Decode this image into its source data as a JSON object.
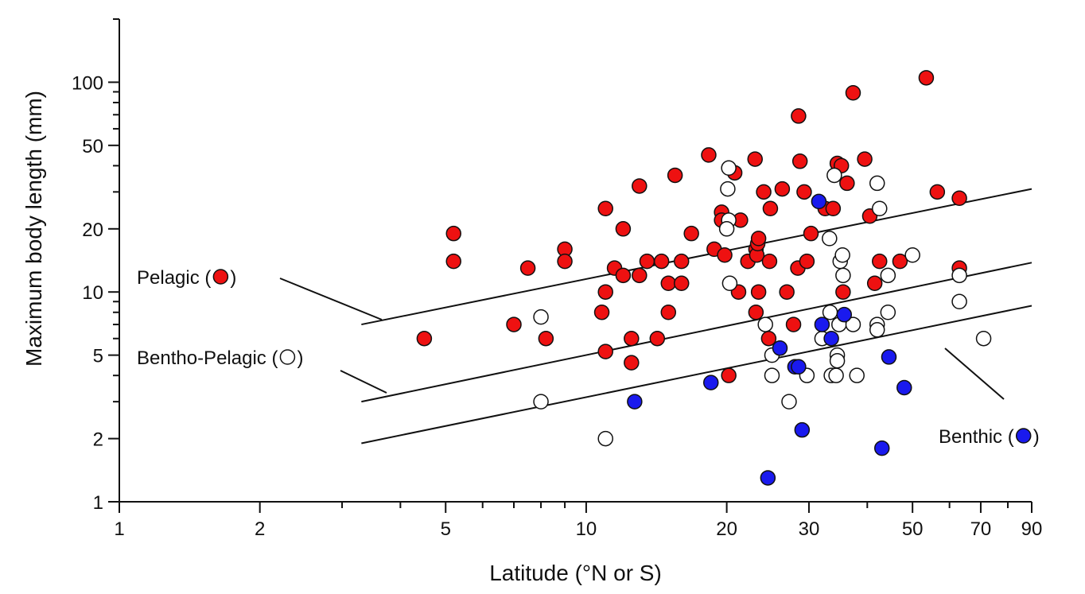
{
  "chart_data": {
    "type": "scatter",
    "title": "",
    "xlabel": "Latitude (°N or S)",
    "ylabel": "Maximum body length (mm)",
    "x_scale": "log",
    "y_scale": "log",
    "xlim": [
      1,
      90
    ],
    "ylim": [
      1,
      200
    ],
    "x_ticks": [
      {
        "value": 1,
        "label": "1"
      },
      {
        "value": 2,
        "label": "2"
      },
      {
        "value": 5,
        "label": "5"
      },
      {
        "value": 10,
        "label": "10"
      },
      {
        "value": 20,
        "label": "20"
      },
      {
        "value": 30,
        "label": "30"
      },
      {
        "value": 50,
        "label": "50"
      },
      {
        "value": 70,
        "label": "70"
      },
      {
        "value": 90,
        "label": "90"
      }
    ],
    "x_minor_ticks": [
      3,
      4,
      6,
      7,
      8,
      9,
      40,
      60,
      80
    ],
    "y_ticks": [
      {
        "value": 1,
        "label": "1"
      },
      {
        "value": 2,
        "label": "2"
      },
      {
        "value": 5,
        "label": "5"
      },
      {
        "value": 10,
        "label": "10"
      },
      {
        "value": 20,
        "label": "20"
      },
      {
        "value": 50,
        "label": "50"
      },
      {
        "value": 100,
        "label": "100"
      }
    ],
    "series": [
      {
        "name": "Pelagic",
        "label": "Pelagic (",
        "label_close": ")",
        "color": "#ee1111",
        "fit_line": [
          [
            3.3,
            7.0
          ],
          [
            90,
            31.0
          ]
        ],
        "points": [
          [
            4.5,
            6.0
          ],
          [
            5.2,
            19
          ],
          [
            5.2,
            14
          ],
          [
            7.0,
            7.0
          ],
          [
            7.5,
            13
          ],
          [
            8.2,
            6.0
          ],
          [
            9.0,
            16
          ],
          [
            9.0,
            14
          ],
          [
            10.8,
            8.0
          ],
          [
            11.0,
            25
          ],
          [
            11.0,
            10
          ],
          [
            11.0,
            5.2
          ],
          [
            11.5,
            13
          ],
          [
            12.0,
            20
          ],
          [
            12.0,
            12
          ],
          [
            12.5,
            6.0
          ],
          [
            12.5,
            4.6
          ],
          [
            13.0,
            32
          ],
          [
            13.0,
            12
          ],
          [
            13.5,
            14
          ],
          [
            14.2,
            6.0
          ],
          [
            14.5,
            14
          ],
          [
            15.0,
            11
          ],
          [
            15.0,
            8.0
          ],
          [
            15.5,
            36
          ],
          [
            16.0,
            14
          ],
          [
            16.0,
            11
          ],
          [
            16.8,
            19
          ],
          [
            18.3,
            45
          ],
          [
            18.8,
            16
          ],
          [
            19.5,
            24
          ],
          [
            19.5,
            22
          ],
          [
            19.8,
            15
          ],
          [
            20.2,
            4.0
          ],
          [
            20.8,
            37
          ],
          [
            21.2,
            10
          ],
          [
            21.4,
            22
          ],
          [
            22.2,
            14
          ],
          [
            23.0,
            43
          ],
          [
            23.1,
            16
          ],
          [
            23.2,
            15
          ],
          [
            23.3,
            17
          ],
          [
            23.4,
            18
          ],
          [
            23.4,
            10
          ],
          [
            23.1,
            8.0
          ],
          [
            24.0,
            30
          ],
          [
            24.8,
            25
          ],
          [
            24.7,
            14
          ],
          [
            24.6,
            6.0
          ],
          [
            26.3,
            31
          ],
          [
            26.9,
            10
          ],
          [
            27.8,
            7.0
          ],
          [
            28.5,
            69
          ],
          [
            28.7,
            42
          ],
          [
            28.4,
            13
          ],
          [
            29.3,
            30
          ],
          [
            29.7,
            14
          ],
          [
            30.3,
            19
          ],
          [
            32.5,
            25
          ],
          [
            33.8,
            25
          ],
          [
            34.5,
            41
          ],
          [
            35.2,
            40
          ],
          [
            35.5,
            10
          ],
          [
            36.2,
            33
          ],
          [
            37.3,
            89
          ],
          [
            39.5,
            43
          ],
          [
            40.5,
            23
          ],
          [
            41.5,
            11
          ],
          [
            42.5,
            14
          ],
          [
            47.0,
            14
          ],
          [
            53.5,
            105
          ],
          [
            56.5,
            30
          ],
          [
            63.0,
            28
          ],
          [
            63.0,
            13
          ]
        ]
      },
      {
        "name": "Bentho-Pelagic",
        "label": "Bentho-Pelagic (",
        "label_close": ")",
        "color": "#ffffff",
        "fit_line": [
          [
            3.3,
            3.0
          ],
          [
            90,
            13.8
          ]
        ],
        "points": [
          [
            8.0,
            7.6
          ],
          [
            8.0,
            3.0
          ],
          [
            11.0,
            2.0
          ],
          [
            20.2,
            39
          ],
          [
            20.1,
            31
          ],
          [
            20.2,
            22
          ],
          [
            20.0,
            20
          ],
          [
            20.3,
            11
          ],
          [
            24.2,
            7.0
          ],
          [
            25.0,
            5.0
          ],
          [
            25.0,
            4.0
          ],
          [
            27.2,
            3.0
          ],
          [
            29.7,
            4.0
          ],
          [
            32.0,
            6.0
          ],
          [
            33.3,
            8.0
          ],
          [
            33.2,
            18
          ],
          [
            33.5,
            4.0
          ],
          [
            34.0,
            36
          ],
          [
            34.3,
            4.0
          ],
          [
            34.5,
            5.0
          ],
          [
            34.5,
            4.7
          ],
          [
            34.8,
            7.0
          ],
          [
            35.0,
            14
          ],
          [
            35.4,
            15
          ],
          [
            35.5,
            12
          ],
          [
            37.3,
            7.0
          ],
          [
            38.0,
            4.0
          ],
          [
            42.0,
            33
          ],
          [
            42.0,
            7.0
          ],
          [
            42.0,
            6.6
          ],
          [
            42.5,
            25
          ],
          [
            44.3,
            12
          ],
          [
            44.3,
            8.0
          ],
          [
            50.0,
            15
          ],
          [
            63.0,
            12
          ],
          [
            63.0,
            9.0
          ],
          [
            71.0,
            6.0
          ]
        ]
      },
      {
        "name": "Benthic",
        "label": "Benthic (",
        "label_close": ")",
        "color": "#1a1aee",
        "fit_line": [
          [
            3.3,
            1.9
          ],
          [
            90,
            8.6
          ]
        ],
        "points": [
          [
            12.7,
            3.0
          ],
          [
            18.5,
            3.7
          ],
          [
            24.5,
            1.3
          ],
          [
            26.0,
            5.4
          ],
          [
            28.0,
            4.4
          ],
          [
            28.5,
            4.4
          ],
          [
            29.0,
            2.2
          ],
          [
            31.5,
            27
          ],
          [
            32.0,
            7.0
          ],
          [
            33.5,
            6.0
          ],
          [
            35.7,
            7.8
          ],
          [
            43.0,
            1.8
          ],
          [
            44.5,
            4.9
          ],
          [
            48.0,
            3.5
          ]
        ]
      }
    ]
  }
}
